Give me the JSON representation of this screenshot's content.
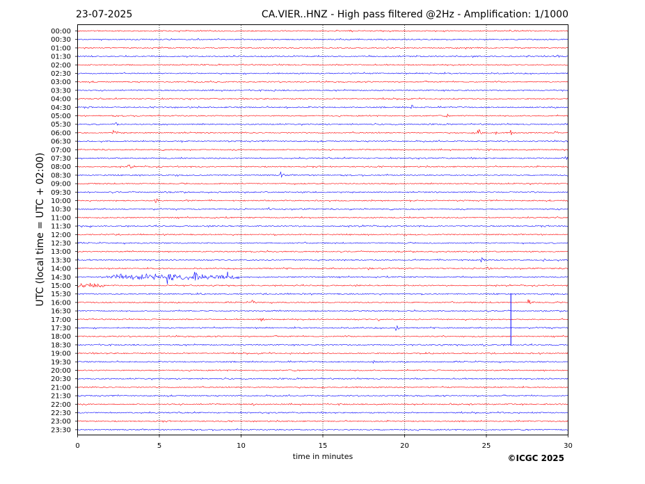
{
  "header": {
    "date": "23-07-2025",
    "title": "CA.VIER..HNZ - High pass filtered @2Hz - Amplification: 1/1000"
  },
  "copyright": "©ICGC 2025",
  "colors": {
    "odd_trace": "#ff0000",
    "even_trace": "#0000ff",
    "grid": "#000000"
  },
  "chart_data": {
    "type": "line",
    "subtype": "helicorder",
    "xlabel": "time in minutes",
    "ylabel": "UTC (local time = UTC + 02:00)",
    "xlim": [
      0,
      30
    ],
    "xticks": [
      0,
      5,
      10,
      15,
      20,
      25,
      30
    ],
    "xtick_labels": [
      "0",
      "5",
      "10",
      "15",
      "20",
      "25",
      "30"
    ],
    "vertical_grid": [
      5,
      10,
      15,
      20,
      25
    ],
    "grid": "dotted vertical",
    "rows": [
      "00:00",
      "00:30",
      "01:00",
      "01:30",
      "02:00",
      "02:30",
      "03:00",
      "03:30",
      "04:00",
      "04:30",
      "05:00",
      "05:30",
      "06:00",
      "06:30",
      "07:00",
      "07:30",
      "08:00",
      "08:30",
      "09:00",
      "09:30",
      "10:00",
      "10:30",
      "11:00",
      "11:30",
      "12:00",
      "12:30",
      "13:00",
      "13:30",
      "14:00",
      "14:30",
      "15:00",
      "15:30",
      "16:00",
      "16:30",
      "17:00",
      "17:30",
      "18:00",
      "18:30",
      "19:00",
      "19:30",
      "20:00",
      "20:30",
      "21:00",
      "21:30",
      "22:00",
      "22:30",
      "23:00",
      "23:30"
    ],
    "row_colors": "alternating red/blue starting with red at 00:00",
    "events": [
      {
        "row": "01:30",
        "minute": 29.3,
        "amp": 0.5
      },
      {
        "row": "02:00",
        "minute": 16.8,
        "amp": 0.35
      },
      {
        "row": "02:30",
        "minute": 21.5,
        "amp": 0.4
      },
      {
        "row": "03:00",
        "minute": 8.5,
        "amp": 0.25
      },
      {
        "row": "03:30",
        "minute": 12.0,
        "amp": 0.3
      },
      {
        "row": "04:30",
        "minute": 12.8,
        "amp": 0.45
      },
      {
        "row": "04:30",
        "minute": 20.4,
        "amp": 0.8
      },
      {
        "row": "05:00",
        "minute": 22.6,
        "amp": 0.45
      },
      {
        "row": "05:30",
        "minute": 2.3,
        "amp": 0.6
      },
      {
        "row": "06:00",
        "minute": 2.2,
        "amp": 1.2
      },
      {
        "row": "06:00",
        "minute": 24.5,
        "amp": 1.4
      },
      {
        "row": "06:00",
        "minute": 25.5,
        "amp": 0.6
      },
      {
        "row": "06:00",
        "minute": 26.5,
        "amp": 0.7
      },
      {
        "row": "06:00",
        "minute": 29.2,
        "amp": 0.5
      },
      {
        "row": "06:30",
        "minute": 2.8,
        "amp": 0.35
      },
      {
        "row": "07:30",
        "minute": 1.8,
        "amp": 0.4
      },
      {
        "row": "07:30",
        "minute": 29.8,
        "amp": 0.55
      },
      {
        "row": "08:00",
        "minute": 3.1,
        "amp": 0.9
      },
      {
        "row": "08:30",
        "minute": 12.4,
        "amp": 0.9
      },
      {
        "row": "09:30",
        "minute": 14.6,
        "amp": 0.35
      },
      {
        "row": "10:00",
        "minute": 4.7,
        "amp": 1.0
      },
      {
        "row": "10:00",
        "minute": 6.8,
        "amp": 0.45
      },
      {
        "row": "10:30",
        "minute": 11.7,
        "amp": 0.4
      },
      {
        "row": "10:30",
        "minute": 16.6,
        "amp": 0.4
      },
      {
        "row": "11:00",
        "minute": 21.2,
        "amp": 0.35
      },
      {
        "row": "11:30",
        "minute": 0.8,
        "amp": 0.35
      },
      {
        "row": "13:30",
        "minute": 24.7,
        "amp": 0.8
      },
      {
        "row": "13:30",
        "minute": 28.4,
        "amp": 0.5
      },
      {
        "row": "14:00",
        "minute": 17.8,
        "amp": 0.45
      },
      {
        "row": "14:00",
        "minute": 25.1,
        "amp": 0.6
      },
      {
        "row": "14:30",
        "minute": 5.5,
        "amp": 1.8
      },
      {
        "row": "14:30",
        "minute": 7.2,
        "amp": 1.6
      },
      {
        "row": "14:30",
        "minute": 9.2,
        "amp": 1.4
      },
      {
        "row": "15:00",
        "minute": 0.8,
        "amp": 0.6
      },
      {
        "row": "16:00",
        "minute": 10.7,
        "amp": 0.6
      },
      {
        "row": "16:00",
        "minute": 27.6,
        "amp": 0.9
      },
      {
        "row": "17:00",
        "minute": 11.2,
        "amp": 0.6
      },
      {
        "row": "17:00",
        "minute": 18.4,
        "amp": 0.45
      },
      {
        "row": "17:30",
        "minute": 19.5,
        "amp": 0.6
      },
      {
        "row": "18:30",
        "minute": 24.8,
        "amp": 0.6
      },
      {
        "row": "19:30",
        "minute": 18.1,
        "amp": 0.35
      },
      {
        "row": "22:00",
        "minute": 10.7,
        "amp": 0.45
      },
      {
        "row": "22:00",
        "minute": 22.8,
        "amp": 0.4
      },
      {
        "row": "22:00",
        "minute": 24.0,
        "amp": 0.35
      }
    ],
    "long_spikes": [
      {
        "row": "16:30",
        "minute": 26.5,
        "from_row": "15:30",
        "to_row": "18:30"
      }
    ],
    "noise_bursts": [
      {
        "row": "14:30",
        "from_minute": 1.8,
        "to_minute": 10.0,
        "amp": 0.55
      },
      {
        "row": "15:00",
        "from_minute": 0.0,
        "to_minute": 1.7,
        "amp": 0.4
      }
    ]
  }
}
